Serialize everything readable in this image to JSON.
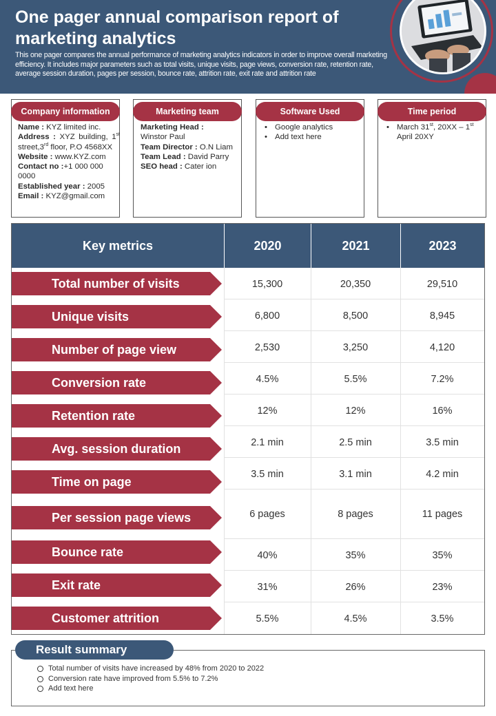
{
  "header": {
    "title": "One pager annual comparison report of marketing analytics",
    "description": "This one pager compares the annual performance of marketing analytics indicators in order to improve overall marketing efficiency. It includes major parameters such as total visits, unique visits, page views, conversion rate, retention rate, average session duration, pages per session, bounce rate, attrition rate, exit rate and attrition rate"
  },
  "cards": {
    "company": {
      "title": "Company information",
      "name_label": "Name :",
      "name_value": " KYZ limited inc.",
      "address_label": "Address :",
      "address_value": " XYZ building, 1st street,3rd floor, P.O 4568XX",
      "website_label": "Website :",
      "website_value": " www.KYZ.com",
      "contact_label": "Contact no :",
      "contact_value": "+1 000 000 0000",
      "established_label": "Established year :",
      "established_value": " 2005",
      "email_label": "Email :",
      "email_value": " KYZ@gmail.com"
    },
    "marketing_team": {
      "title": "Marketing team",
      "head_label": "Marketing Head :",
      "head_value": "Winstor Paul",
      "director_label": "Team Director :",
      "director_value": " O.N Liam",
      "lead_label": "Team Lead :",
      "lead_value": " David Parry",
      "seo_label": "SEO head :",
      "seo_value": " Cater ion"
    },
    "software": {
      "title": "Software Used",
      "items": [
        "Google analytics",
        "Add text here"
      ]
    },
    "time_period": {
      "title": "Time period",
      "item": "March 31st, 20XX – 1st April 20XY"
    }
  },
  "table": {
    "headers": [
      "Key metrics",
      "2020",
      "2021",
      "2023"
    ],
    "rows": [
      {
        "metric": "Total number of visits",
        "values": [
          "15,300",
          "20,350",
          "29,510"
        ]
      },
      {
        "metric": "Unique visits",
        "values": [
          "6,800",
          "8,500",
          "8,945"
        ]
      },
      {
        "metric": "Number of page view",
        "values": [
          "2,530",
          "3,250",
          "4,120"
        ]
      },
      {
        "metric": "Conversion rate",
        "values": [
          "4.5%",
          "5.5%",
          "7.2%"
        ]
      },
      {
        "metric": "Retention rate",
        "values": [
          "12%",
          "12%",
          "16%"
        ]
      },
      {
        "metric": "Avg. session duration",
        "values": [
          "2.1 min",
          "2.5 min",
          "3.5 min"
        ]
      },
      {
        "metric": "Time on page",
        "values": [
          "3.5 min",
          "3.1 min",
          "4.2 min"
        ]
      },
      {
        "metric": "Per session page views",
        "values": [
          "6 pages",
          "8 pages",
          "11 pages"
        ]
      },
      {
        "metric": "Bounce rate",
        "values": [
          "40%",
          "35%",
          "35%"
        ]
      },
      {
        "metric": "Exit rate",
        "values": [
          "31%",
          "26%",
          "23%"
        ]
      },
      {
        "metric": "Customer attrition",
        "values": [
          "5.5%",
          "4.5%",
          "3.5%"
        ]
      }
    ]
  },
  "result_summary": {
    "title": "Result summary",
    "items": [
      "Total number of visits have increased by 48% from 2020 to 2022",
      "Conversion rate have improved from 5.5% to 7.2%",
      " Add text here"
    ]
  },
  "colors": {
    "navy": "#3c5878",
    "maroon": "#a53345"
  },
  "icons": [
    "laptop-photo-icon"
  ]
}
